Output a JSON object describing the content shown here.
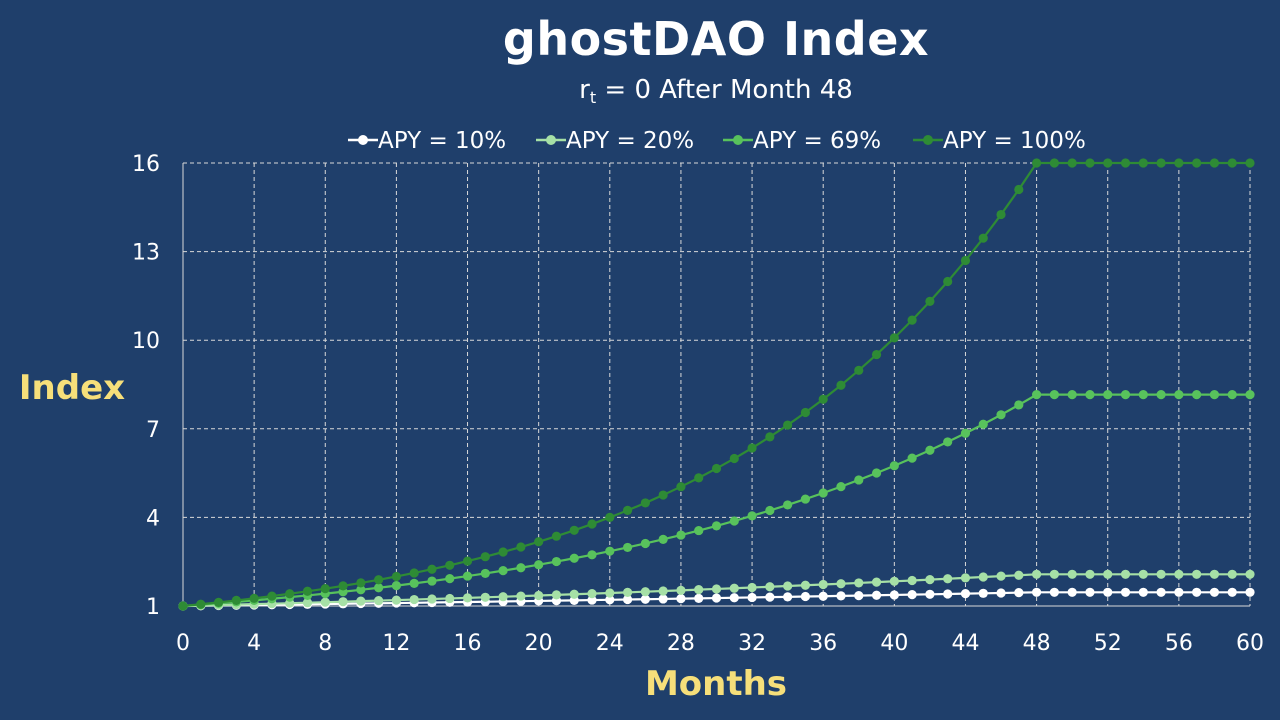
{
  "chart_data": {
    "type": "line",
    "title": "ghostDAO Index",
    "subtitle_main": "r",
    "subtitle_sub": "t",
    "subtitle_rest": " = 0 After Month 48",
    "xlabel": "Months",
    "ylabel": "Index",
    "xlim": [
      0,
      60
    ],
    "ylim": [
      1,
      16
    ],
    "xticks": [
      0,
      4,
      8,
      12,
      16,
      20,
      24,
      28,
      32,
      36,
      40,
      44,
      48,
      52,
      56,
      60
    ],
    "yticks": [
      1,
      4,
      7,
      10,
      13,
      16
    ],
    "grid": true,
    "legend_position": "top",
    "growth_stops_after_month": 48,
    "series": [
      {
        "name": "APY = 10%",
        "apy": 0.1,
        "color": "#ffffff",
        "final_value": 1.46
      },
      {
        "name": "APY = 20%",
        "apy": 0.2,
        "color": "#a6e0a6",
        "final_value": 2.07
      },
      {
        "name": "APY = 69%",
        "apy": 0.69,
        "color": "#58c25c",
        "final_value": 8.15
      },
      {
        "name": "APY = 100%",
        "apy": 1.0,
        "color": "#2e8b35",
        "final_value": 16.0
      }
    ]
  }
}
